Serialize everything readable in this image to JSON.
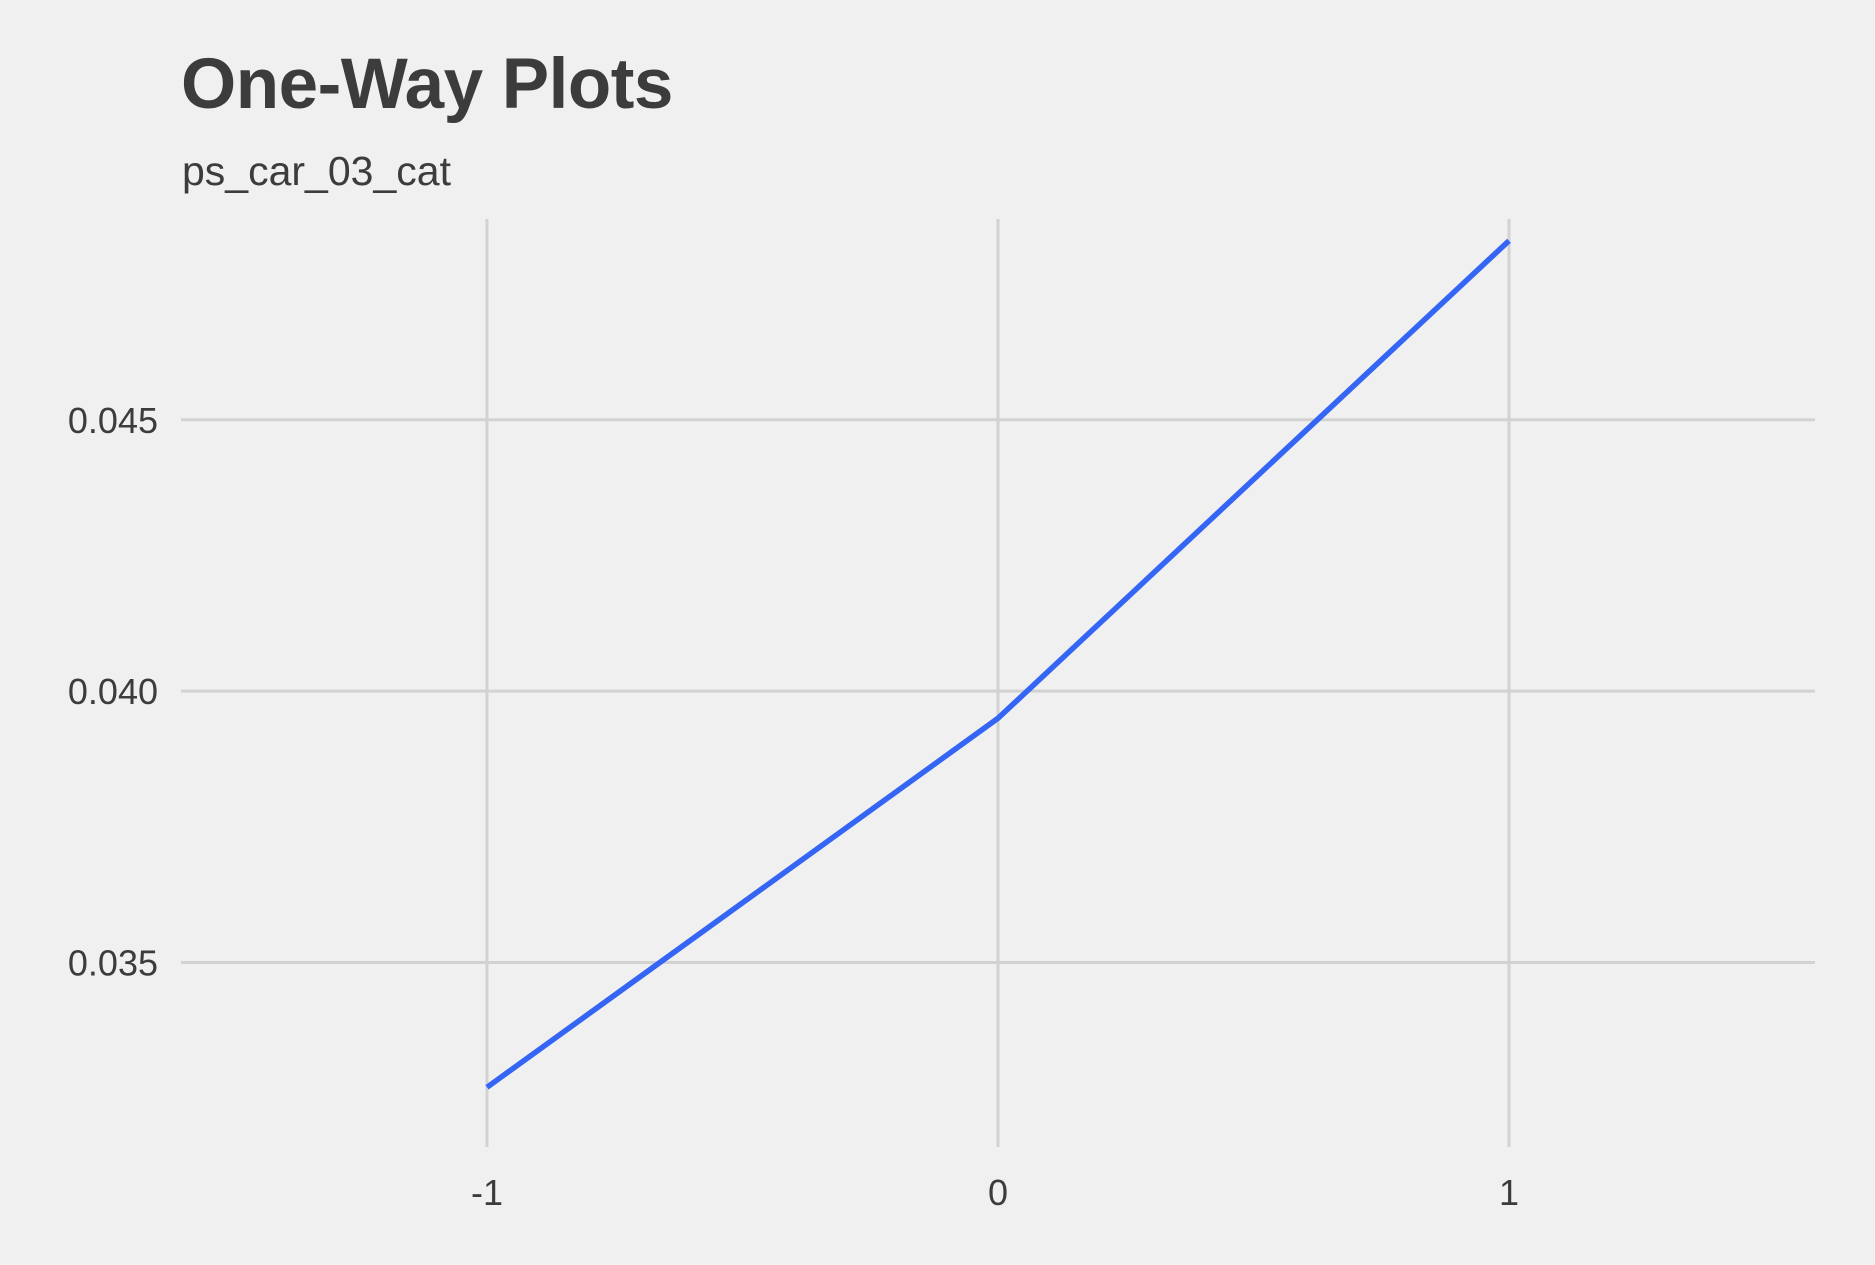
{
  "chart_data": {
    "type": "line",
    "title": "One-Way Plots",
    "subtitle": "ps_car_03_cat",
    "xlabel": "",
    "ylabel": "",
    "x": [
      "-1",
      "0",
      "1"
    ],
    "series": [
      {
        "values": [
          0.0327,
          0.0395,
          0.0483
        ]
      }
    ],
    "x_ticks": [
      "-1",
      "0",
      "1"
    ],
    "y_ticks": [
      {
        "value": 0.035,
        "label": "0.035"
      },
      {
        "value": 0.04,
        "label": "0.040"
      },
      {
        "value": 0.045,
        "label": "0.045"
      }
    ],
    "ylim": [
      0.0316,
      0.0487
    ],
    "grid": true,
    "colors": {
      "background": "#f0f0f0",
      "grid": "#d2d2d2",
      "line": "#3465f4",
      "text": "#3c3c3c"
    }
  }
}
